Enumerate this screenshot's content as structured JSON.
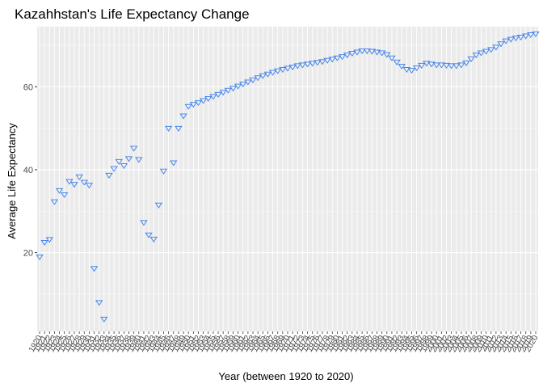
{
  "chart_data": {
    "type": "scatter",
    "title": "Kazahhstan's Life Expectancy Change",
    "xlabel": "Year (between 1920 to 2020)",
    "ylabel": "Average Life Expectancy",
    "xlim": [
      1920,
      2020
    ],
    "ylim": [
      1,
      74.5
    ],
    "y_ticks": [
      20,
      40,
      60
    ],
    "grid": true,
    "legend": "none",
    "marker": "triangle-down-open",
    "marker_color": "#4a86e8",
    "panel_background": "#ebebeb",
    "x": [
      1920,
      1921,
      1922,
      1923,
      1924,
      1925,
      1926,
      1927,
      1928,
      1929,
      1930,
      1931,
      1932,
      1933,
      1934,
      1935,
      1936,
      1937,
      1938,
      1939,
      1940,
      1941,
      1942,
      1943,
      1944,
      1945,
      1946,
      1947,
      1948,
      1949,
      1950,
      1951,
      1952,
      1953,
      1954,
      1955,
      1956,
      1957,
      1958,
      1959,
      1960,
      1961,
      1962,
      1963,
      1964,
      1965,
      1966,
      1967,
      1968,
      1969,
      1970,
      1971,
      1972,
      1973,
      1974,
      1975,
      1976,
      1977,
      1978,
      1979,
      1980,
      1981,
      1982,
      1983,
      1984,
      1985,
      1986,
      1987,
      1988,
      1989,
      1990,
      1991,
      1992,
      1993,
      1994,
      1995,
      1996,
      1997,
      1998,
      1999,
      2000,
      2001,
      2002,
      2003,
      2004,
      2005,
      2006,
      2007,
      2008,
      2009,
      2010,
      2011,
      2012,
      2013,
      2014,
      2015,
      2016,
      2017,
      2018,
      2019,
      2020
    ],
    "values": [
      19.0,
      22.5,
      23.2,
      32.3,
      35.0,
      34.0,
      37.2,
      36.5,
      38.3,
      37.0,
      36.3,
      16.2,
      8.0,
      4.0,
      38.7,
      40.3,
      42.0,
      41.0,
      42.7,
      45.2,
      42.5,
      27.3,
      24.3,
      23.3,
      31.5,
      39.7,
      50.0,
      41.7,
      50.0,
      53.0,
      55.3,
      55.8,
      56.2,
      56.7,
      57.2,
      57.7,
      58.2,
      58.7,
      59.2,
      59.7,
      60.2,
      60.7,
      61.2,
      61.7,
      62.2,
      62.7,
      63.1,
      63.5,
      63.9,
      64.2,
      64.5,
      64.8,
      65.1,
      65.3,
      65.5,
      65.7,
      65.9,
      66.1,
      66.4,
      66.7,
      67.0,
      67.3,
      67.7,
      68.1,
      68.4,
      68.7,
      68.7,
      68.6,
      68.4,
      68.2,
      67.8,
      67.0,
      66.0,
      65.0,
      64.2,
      64.0,
      64.6,
      65.2,
      65.7,
      65.5,
      65.3,
      65.3,
      65.2,
      65.1,
      65.1,
      65.3,
      65.8,
      66.8,
      67.7,
      68.2,
      68.6,
      69.0,
      69.6,
      70.4,
      71.1,
      71.5,
      71.8,
      72.0,
      72.3,
      72.6,
      72.8
    ],
    "x_tick_labels": [
      "1920",
      "1921",
      "1922",
      "1923",
      "1924",
      "1925",
      "1926",
      "1927",
      "1928",
      "1929",
      "1930",
      "1931",
      "1932",
      "1933",
      "1934",
      "1935",
      "1936",
      "1937",
      "1938",
      "1939",
      "1940",
      "1941",
      "1942",
      "1943",
      "1944",
      "1945",
      "1946",
      "1947",
      "1948",
      "1949",
      "1950",
      "1951",
      "1952",
      "1953",
      "1954",
      "1955",
      "1956",
      "1957",
      "1958",
      "1959",
      "1960",
      "1961",
      "1962",
      "1963",
      "1964",
      "1965",
      "1966",
      "1967",
      "1968",
      "1969",
      "1970",
      "1971",
      "1972",
      "1973",
      "1974",
      "1975",
      "1976",
      "1977",
      "1978",
      "1979",
      "1980",
      "1981",
      "1982",
      "1983",
      "1984",
      "1985",
      "1986",
      "1987",
      "1988",
      "1989",
      "1990",
      "1991",
      "1992",
      "1993",
      "1994",
      "1995",
      "1996",
      "1997",
      "1998",
      "1999",
      "2000",
      "2001",
      "2002",
      "2003",
      "2004",
      "2005",
      "2006",
      "2007",
      "2008",
      "2009",
      "2010",
      "2011",
      "2012",
      "2013",
      "2014",
      "2015",
      "2016",
      "2017",
      "2018",
      "2019",
      "2020"
    ]
  }
}
